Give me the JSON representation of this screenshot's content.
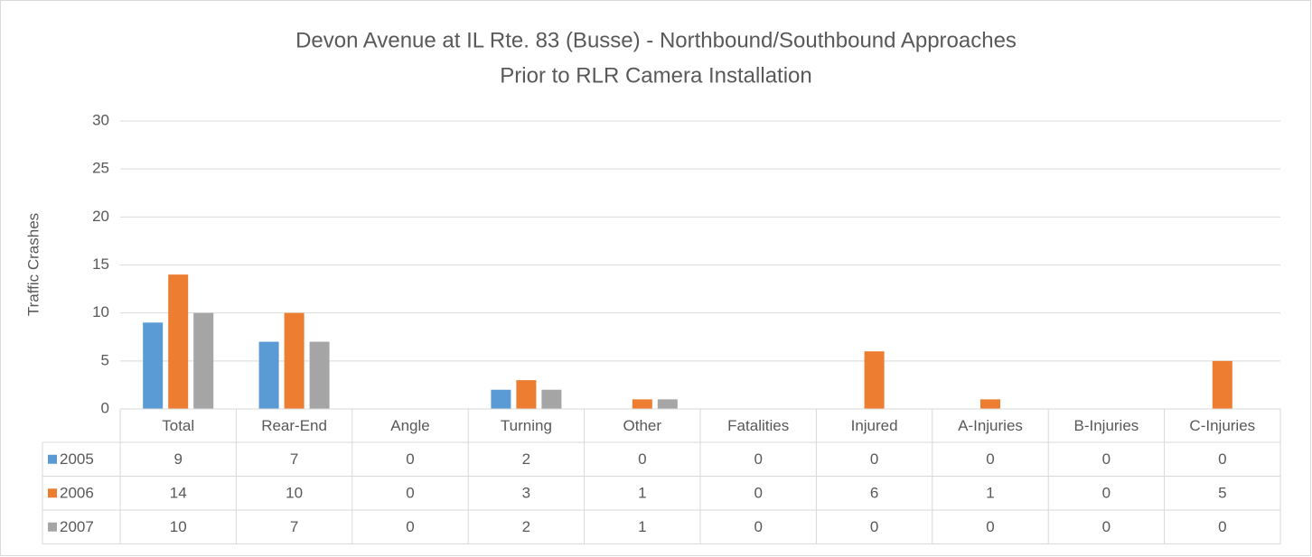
{
  "chart_data": {
    "type": "bar",
    "title": [
      "Devon Avenue at IL Rte. 83 (Busse) - Northbound/Southbound Approaches",
      "Prior to RLR Camera Installation"
    ],
    "y_label": "Traffic Crashes",
    "categories": [
      "Total",
      "Rear-End",
      "Angle",
      "Turning",
      "Other",
      "Fatalities",
      "Injured",
      "A-Injuries",
      "B-Injuries",
      "C-Injuries"
    ],
    "series": [
      {
        "name": "2005",
        "color": "#5b9bd5",
        "values": [
          9,
          7,
          0,
          2,
          0,
          0,
          0,
          0,
          0,
          0
        ]
      },
      {
        "name": "2006",
        "color": "#ed7d31",
        "values": [
          14,
          10,
          0,
          3,
          1,
          0,
          6,
          1,
          0,
          5
        ]
      },
      {
        "name": "2007",
        "color": "#a5a5a5",
        "values": [
          10,
          7,
          0,
          2,
          1,
          0,
          0,
          0,
          0,
          0
        ]
      }
    ],
    "ylim": [
      0,
      30
    ],
    "yticks": [
      0,
      5,
      10,
      15,
      20,
      25,
      30
    ],
    "grid": true
  }
}
